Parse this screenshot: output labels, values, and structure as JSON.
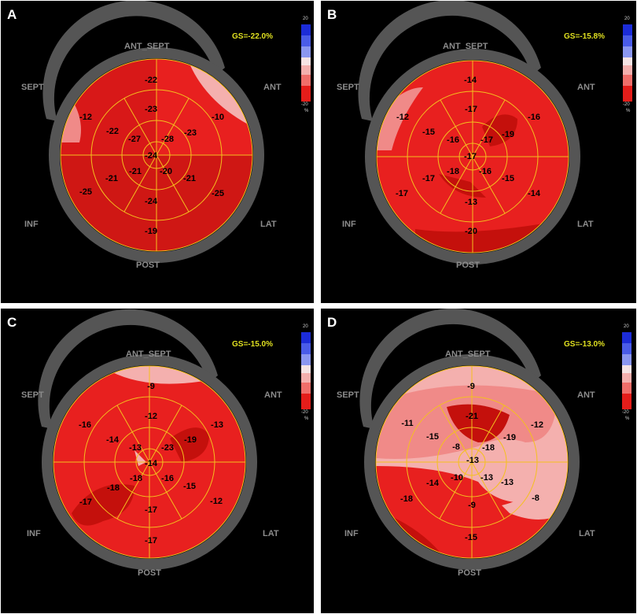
{
  "orientation": {
    "ant_sept": "ANT_SEPT",
    "sept": "SEPT",
    "ant": "ANT",
    "inf": "INF",
    "lat": "LAT",
    "post": "POST"
  },
  "colorbar": {
    "top": "20",
    "bottom": "-20",
    "unit": "%"
  },
  "colors": {
    "background": "#000000",
    "ring": "#555555",
    "segment_lines": "#f4c01e",
    "gs_text": "#e0e020",
    "base_red": "#e8201f",
    "deep_red": "#c4100c",
    "light_red": "#f08a88",
    "pale_red": "#f4b0ae"
  },
  "panels": [
    {
      "label": "A",
      "gs": "GS=-22.0%",
      "outer": [
        "-22",
        "-10",
        "-25",
        "-19",
        "-25",
        "-12"
      ],
      "mid": [
        "-23",
        "-23",
        "-21",
        "-24",
        "-21",
        "-22"
      ],
      "apical": [
        "-28",
        "-20",
        "-21",
        "-27"
      ],
      "apex": "-24"
    },
    {
      "label": "B",
      "gs": "GS=-15.8%",
      "outer": [
        "-14",
        "-16",
        "-14",
        "-20",
        "-17",
        "-12"
      ],
      "mid": [
        "-17",
        "-19",
        "-15",
        "-13",
        "-17",
        "-15"
      ],
      "apical": [
        "-17",
        "-16",
        "-18",
        "-16"
      ],
      "apex": "-17"
    },
    {
      "label": "C",
      "gs": "GS=-15.0%",
      "outer": [
        "-9",
        "-13",
        "-12",
        "-17",
        "-17",
        "-16"
      ],
      "mid": [
        "-12",
        "-19",
        "-15",
        "-17",
        "-18",
        "-14"
      ],
      "apical": [
        "-23",
        "-16",
        "-18",
        "-13"
      ],
      "apex": "-14"
    },
    {
      "label": "D",
      "gs": "GS=-13.0%",
      "outer": [
        "-9",
        "-12",
        "-8",
        "-15",
        "-18",
        "-11"
      ],
      "mid": [
        "-21",
        "-19",
        "-13",
        "-9",
        "-14",
        "-15"
      ],
      "apical": [
        "-18",
        "-13",
        "-10",
        "-8"
      ],
      "apex": "-13"
    }
  ]
}
